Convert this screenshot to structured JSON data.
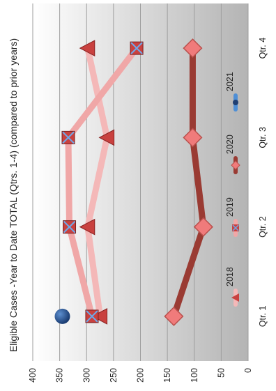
{
  "chart_data": {
    "type": "line",
    "title": "Eligible Cases -Year to Date TOTAL (Qtrs. 1-4) (compared to prior years)",
    "xlabel": "",
    "ylabel": "",
    "categories": [
      "Qtr. 1",
      "Qtr. 2",
      "Qtr. 3",
      "Qtr. 4"
    ],
    "ylim": [
      0,
      400
    ],
    "yticks": [
      0,
      50,
      100,
      150,
      200,
      250,
      300,
      350,
      400
    ],
    "grid": true,
    "orientation": "rotated-90-clockwise",
    "legend_position": "right",
    "series": [
      {
        "name": "2018",
        "values": [
          275,
          298,
          262,
          298
        ],
        "color": "#f4b8b8",
        "marker": "triangle",
        "marker_color": "#c9413f"
      },
      {
        "name": "2019",
        "values": [
          290,
          332,
          334,
          207
        ],
        "color": "#f0a7a7",
        "marker": "box-x",
        "marker_color": "#c9413f"
      },
      {
        "name": "2020",
        "values": [
          138,
          83,
          103,
          103
        ],
        "color": "#9a3b33",
        "marker": "diamond",
        "marker_color": "#f07b7b"
      },
      {
        "name": "2021",
        "values": [
          345,
          null,
          null,
          null
        ],
        "color": "#4f8fd6",
        "marker": "circle",
        "marker_color": "#1f4e8c"
      }
    ]
  }
}
